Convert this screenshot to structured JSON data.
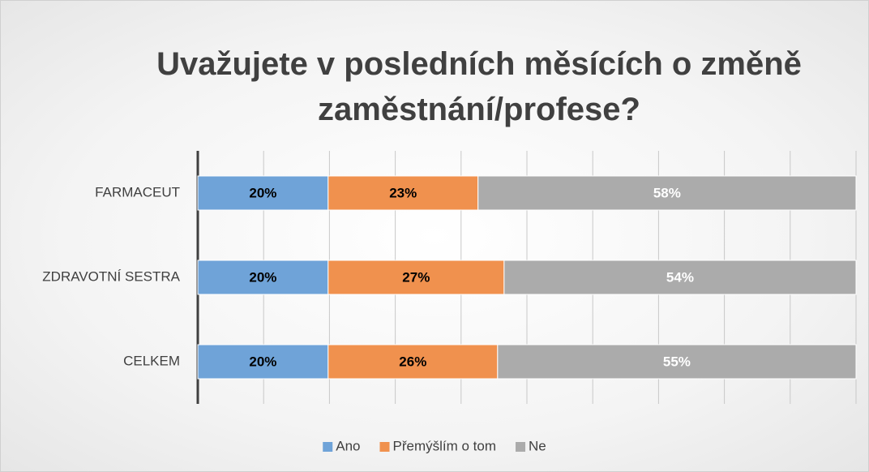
{
  "chart_data": {
    "type": "bar",
    "orientation": "horizontal",
    "stacking": "percent",
    "title": "Uvažujete v posledních měsících o změně zaměstnání/profese?",
    "categories": [
      "FARMACEUT",
      "ZDRAVOTNÍ SESTRA",
      "CELKEM"
    ],
    "series": [
      {
        "name": "Ano",
        "color": "#6fa3d8",
        "label_color": "#000000",
        "values": [
          20,
          20,
          20
        ],
        "value_labels": [
          "20%",
          "20%",
          "20%"
        ]
      },
      {
        "name": "Přemýšlím o tom",
        "color": "#f0914e",
        "label_color": "#000000",
        "values": [
          23,
          27,
          26
        ],
        "value_labels": [
          "23%",
          "27%",
          "26%"
        ]
      },
      {
        "name": "Ne",
        "color": "#ababab",
        "label_color": "#ffffff",
        "values": [
          58,
          54,
          55
        ],
        "value_labels": [
          "58%",
          "54%",
          "55%"
        ]
      }
    ],
    "xlim": [
      0,
      100
    ],
    "xticks": [
      0,
      10,
      20,
      30,
      40,
      50,
      60,
      70,
      80,
      90,
      100
    ],
    "grid": true,
    "legend": "bottom"
  }
}
